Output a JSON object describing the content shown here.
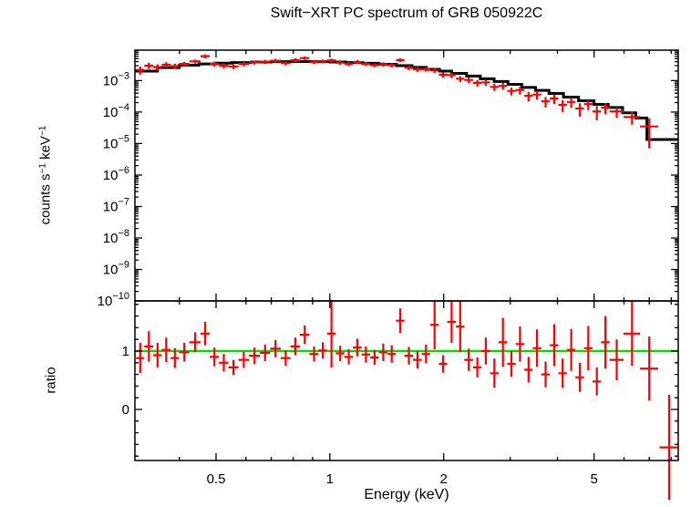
{
  "chart_data": {
    "type": "scatter",
    "title": "Swift−XRT PC spectrum of GRB 050922C",
    "xlabel": "Energy (keV)",
    "x_scale": "log",
    "xlim": [
      0.305,
      8.35
    ],
    "x_major_ticks": [
      0.5,
      1,
      2,
      5
    ],
    "x_major_tick_labels": [
      "0.5",
      "1",
      "2",
      "5"
    ],
    "x_minor_ticks": [
      0.4,
      0.6,
      0.7,
      0.8,
      0.9,
      3,
      4,
      6,
      7,
      8
    ],
    "colors": {
      "data": "#ff0000",
      "model": "#000000",
      "unity_line": "#00dd00",
      "axis": "#000000",
      "background": "#ffffff"
    },
    "panels": [
      {
        "name": "spectrum",
        "ylabel": "counts s−1 keV−1",
        "ylabel_parts": [
          {
            "text": "counts s"
          },
          {
            "text": "−1",
            "sup": true
          },
          {
            "text": " keV"
          },
          {
            "text": "−1",
            "sup": true
          }
        ],
        "y_scale": "log",
        "ylim": [
          1e-10,
          0.0093
        ],
        "y_tick_exponents": [
          -3,
          -4,
          -5,
          -6,
          -7,
          -8,
          -9,
          -10
        ],
        "series": [
          {
            "name": "observed-counts",
            "color": "#ff0000",
            "point_format": [
              "energy_keV",
              "energy_halfwidth",
              "rate",
              "rate_error"
            ],
            "points": [
              [
                0.315,
                0.008,
                0.0022,
                0.00065
              ],
              [
                0.332,
                0.009,
                0.003,
                0.0007
              ],
              [
                0.35,
                0.009,
                0.0027,
                0.0006
              ],
              [
                0.369,
                0.01,
                0.0032,
                0.00065
              ],
              [
                0.389,
                0.01,
                0.0029,
                0.00055
              ],
              [
                0.412,
                0.013,
                0.0034,
                0.00055
              ],
              [
                0.44,
                0.015,
                0.0041,
                0.0006
              ],
              [
                0.468,
                0.013,
                0.006,
                0.0009
              ],
              [
                0.495,
                0.014,
                0.0034,
                0.0006
              ],
              [
                0.524,
                0.015,
                0.003,
                0.00055
              ],
              [
                0.556,
                0.017,
                0.0028,
                0.0005
              ],
              [
                0.592,
                0.019,
                0.0034,
                0.00055
              ],
              [
                0.632,
                0.021,
                0.0038,
                0.00055
              ],
              [
                0.674,
                0.021,
                0.004,
                0.0006
              ],
              [
                0.718,
                0.023,
                0.0043,
                0.0006
              ],
              [
                0.764,
                0.023,
                0.0036,
                0.00055
              ],
              [
                0.81,
                0.023,
                0.0045,
                0.0006
              ],
              [
                0.858,
                0.025,
                0.0052,
                0.00065
              ],
              [
                0.908,
                0.025,
                0.0039,
                0.00055
              ],
              [
                0.958,
                0.025,
                0.0041,
                0.00055
              ],
              [
                1.01,
                0.027,
                0.0044,
                0.0006
              ],
              [
                1.065,
                0.028,
                0.0037,
                0.0005
              ],
              [
                1.122,
                0.029,
                0.0034,
                0.0005
              ],
              [
                1.182,
                0.031,
                0.0039,
                0.00055
              ],
              [
                1.246,
                0.033,
                0.0034,
                0.0005
              ],
              [
                1.313,
                0.034,
                0.0031,
                0.00045
              ],
              [
                1.384,
                0.037,
                0.0033,
                0.0005
              ],
              [
                1.458,
                0.037,
                0.0031,
                0.00048
              ],
              [
                1.536,
                0.04,
                0.0045,
                0.0006
              ],
              [
                1.618,
                0.042,
                0.0026,
                0.00042
              ],
              [
                1.705,
                0.045,
                0.0023,
                0.0004
              ],
              [
                1.796,
                0.046,
                0.0023,
                0.00038
              ],
              [
                1.892,
                0.05,
                0.0021,
                0.00036
              ],
              [
                1.993,
                0.051,
                0.00155,
                0.0003
              ],
              [
                2.1,
                0.056,
                0.0015,
                0.0003
              ],
              [
                2.212,
                0.056,
                0.00115,
                0.00025
              ],
              [
                2.33,
                0.062,
                0.00105,
                0.00023
              ],
              [
                2.455,
                0.063,
                0.00085,
                0.0002
              ],
              [
                2.586,
                0.068,
                0.00088,
                0.0002
              ],
              [
                2.724,
                0.07,
                0.00063,
                0.00016
              ],
              [
                2.87,
                0.076,
                0.00068,
                0.00017
              ],
              [
                3.023,
                0.077,
                0.00047,
                0.00013
              ],
              [
                3.184,
                0.084,
                0.0005,
                0.00014
              ],
              [
                3.354,
                0.086,
                0.00033,
                0.00011
              ],
              [
                3.533,
                0.093,
                0.00036,
                0.00011
              ],
              [
                3.722,
                0.096,
                0.00022,
                8e-05
              ],
              [
                3.921,
                0.103,
                0.00027,
                9e-05
              ],
              [
                4.13,
                0.106,
                0.00017,
                7e-05
              ],
              [
                4.35,
                0.114,
                0.00021,
                7.5e-05
              ],
              [
                4.583,
                0.119,
                0.00013,
                6e-05
              ],
              [
                4.828,
                0.126,
                0.00018,
                6.5e-05
              ],
              [
                5.086,
                0.132,
                0.000105,
                5e-05
              ],
              [
                5.357,
                0.139,
                0.00014,
                5.5e-05
              ],
              [
                5.74,
                0.244,
                0.000105,
                4e-05
              ],
              [
                6.3,
                0.316,
                7e-05,
                3e-05
              ],
              [
                7.0,
                0.384,
                3.5e-05,
                2.8e-05
              ]
            ]
          },
          {
            "name": "folded-model",
            "color": "#000000",
            "style": "step",
            "point_format": [
              "bin_left_energy_keV",
              "model_rate"
            ],
            "end_energy": 8.35,
            "points": [
              [
                0.305,
                0.002
              ],
              [
                0.35,
                0.0026
              ],
              [
                0.4,
                0.0031
              ],
              [
                0.45,
                0.0034
              ],
              [
                0.5,
                0.0036
              ],
              [
                0.55,
                0.00375
              ],
              [
                0.62,
                0.0039
              ],
              [
                0.7,
                0.004
              ],
              [
                0.8,
                0.00405
              ],
              [
                0.9,
                0.004
              ],
              [
                1.0,
                0.0039
              ],
              [
                1.1,
                0.00375
              ],
              [
                1.22,
                0.00355
              ],
              [
                1.35,
                0.0033
              ],
              [
                1.5,
                0.003
              ],
              [
                1.65,
                0.00265
              ],
              [
                1.8,
                0.0023
              ],
              [
                1.95,
                0.002
              ],
              [
                2.1,
                0.0017
              ],
              [
                2.3,
                0.0014
              ],
              [
                2.5,
                0.00115
              ],
              [
                2.72,
                0.00094
              ],
              [
                2.96,
                0.00076
              ],
              [
                3.22,
                0.00061
              ],
              [
                3.5,
                0.00049
              ],
              [
                3.8,
                0.00039
              ],
              [
                4.15,
                0.0003
              ],
              [
                4.55,
                0.00023
              ],
              [
                5.0,
                0.000175
              ],
              [
                5.45,
                0.00014
              ],
              [
                5.95,
                9.5e-05
              ],
              [
                6.45,
                6.5e-05
              ],
              [
                6.9,
                1.35e-05
              ]
            ]
          }
        ]
      },
      {
        "name": "ratio",
        "ylabel": "ratio",
        "y_scale": "linear",
        "ylim": [
          -0.875,
          1.859
        ],
        "y_major_ticks": [
          0,
          1
        ],
        "y_major_tick_labels": [
          "0",
          "1"
        ],
        "y_minor_ticks": [
          -0.8,
          -0.6,
          -0.4,
          -0.2,
          0.2,
          0.4,
          0.6,
          0.8,
          1.2,
          1.4,
          1.6,
          1.8
        ],
        "series": [
          {
            "name": "data-to-model-ratio",
            "color": "#ff0000",
            "point_format": [
              "energy_keV",
              "energy_halfwidth",
              "ratio",
              "ratio_error"
            ],
            "points": [
              [
                0.315,
                0.008,
                0.88,
                0.26
              ],
              [
                0.332,
                0.009,
                1.08,
                0.26
              ],
              [
                0.35,
                0.009,
                0.93,
                0.21
              ],
              [
                0.369,
                0.01,
                1.02,
                0.21
              ],
              [
                0.389,
                0.01,
                0.88,
                0.17
              ],
              [
                0.412,
                0.013,
                0.98,
                0.16
              ],
              [
                0.44,
                0.015,
                1.15,
                0.17
              ],
              [
                0.468,
                0.013,
                1.3,
                0.2
              ],
              [
                0.495,
                0.014,
                0.9,
                0.16
              ],
              [
                0.524,
                0.015,
                0.8,
                0.15
              ],
              [
                0.556,
                0.017,
                0.72,
                0.13
              ],
              [
                0.592,
                0.019,
                0.85,
                0.14
              ],
              [
                0.632,
                0.021,
                0.92,
                0.14
              ],
              [
                0.674,
                0.021,
                0.97,
                0.14
              ],
              [
                0.718,
                0.023,
                1.04,
                0.15
              ],
              [
                0.764,
                0.023,
                0.88,
                0.13
              ],
              [
                0.81,
                0.023,
                1.08,
                0.15
              ],
              [
                0.858,
                0.025,
                1.28,
                0.16
              ],
              [
                0.908,
                0.025,
                0.95,
                0.13
              ],
              [
                0.958,
                0.025,
                1.01,
                0.14
              ],
              [
                1.01,
                0.027,
                1.3,
                0.58
              ],
              [
                1.065,
                0.028,
                0.96,
                0.13
              ],
              [
                1.122,
                0.029,
                0.9,
                0.13
              ],
              [
                1.182,
                0.031,
                1.06,
                0.15
              ],
              [
                1.246,
                0.033,
                0.94,
                0.14
              ],
              [
                1.313,
                0.034,
                0.89,
                0.13
              ],
              [
                1.384,
                0.037,
                0.98,
                0.15
              ],
              [
                1.458,
                0.037,
                0.95,
                0.15
              ],
              [
                1.536,
                0.04,
                1.52,
                0.21
              ],
              [
                1.618,
                0.042,
                0.92,
                0.15
              ],
              [
                1.705,
                0.045,
                0.85,
                0.15
              ],
              [
                1.796,
                0.046,
                0.95,
                0.16
              ],
              [
                1.892,
                0.05,
                1.45,
                0.42
              ],
              [
                1.993,
                0.051,
                0.78,
                0.15
              ],
              [
                2.1,
                0.056,
                1.5,
                0.36
              ],
              [
                2.212,
                0.056,
                1.42,
                0.44
              ],
              [
                2.33,
                0.062,
                0.85,
                0.19
              ],
              [
                2.455,
                0.063,
                0.72,
                0.17
              ],
              [
                2.586,
                0.068,
                1.0,
                0.23
              ],
              [
                2.724,
                0.07,
                0.62,
                0.25
              ],
              [
                2.87,
                0.076,
                1.15,
                0.42
              ],
              [
                3.023,
                0.077,
                0.78,
                0.22
              ],
              [
                3.184,
                0.084,
                1.12,
                0.3
              ],
              [
                3.354,
                0.086,
                0.68,
                0.22
              ],
              [
                3.533,
                0.093,
                1.05,
                0.32
              ],
              [
                3.722,
                0.096,
                0.6,
                0.22
              ],
              [
                3.921,
                0.103,
                1.1,
                0.36
              ],
              [
                4.13,
                0.106,
                0.62,
                0.25
              ],
              [
                4.35,
                0.114,
                1.02,
                0.36
              ],
              [
                4.583,
                0.119,
                0.55,
                0.25
              ],
              [
                4.828,
                0.126,
                1.05,
                0.38
              ],
              [
                5.086,
                0.132,
                0.48,
                0.24
              ],
              [
                5.357,
                0.139,
                1.15,
                0.45
              ],
              [
                5.74,
                0.244,
                0.85,
                0.35
              ],
              [
                6.3,
                0.316,
                1.3,
                0.55
              ],
              [
                7.0,
                0.384,
                0.7,
                0.55
              ],
              [
                7.9,
                0.45,
                -0.65,
                0.9
              ]
            ]
          },
          {
            "name": "unity-reference-line",
            "color": "#00dd00",
            "value": 1
          }
        ]
      }
    ]
  }
}
